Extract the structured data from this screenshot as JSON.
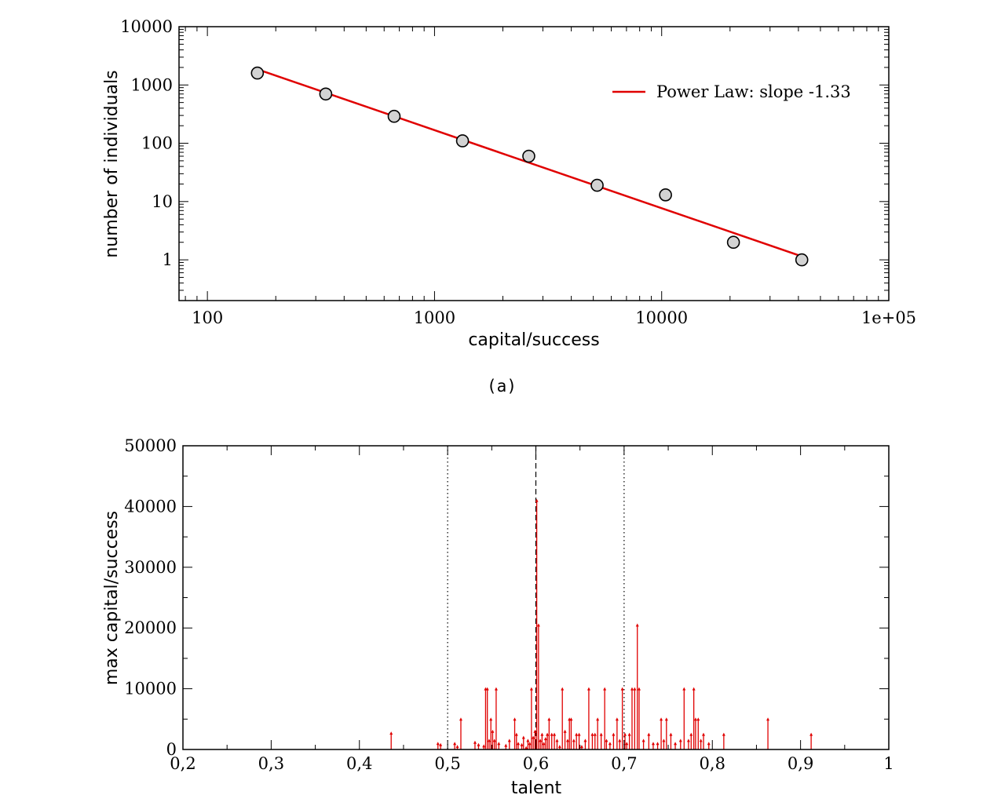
{
  "chart_data": [
    {
      "type": "scatter",
      "xlabel": "capital/success",
      "ylabel": "number of individuals",
      "x_scale": "log",
      "y_scale": "log",
      "xlim": [
        75,
        100000
      ],
      "ylim": [
        0.2,
        10000
      ],
      "x_ticks": [
        {
          "value": 100,
          "label": "100"
        },
        {
          "value": 1000,
          "label": "1000"
        },
        {
          "value": 10000,
          "label": "10000"
        },
        {
          "value": 100000,
          "label": "1e+05"
        }
      ],
      "y_ticks": [
        {
          "value": 1,
          "label": "1"
        },
        {
          "value": 10,
          "label": "10"
        },
        {
          "value": 100,
          "label": "100"
        },
        {
          "value": 1000,
          "label": "1000"
        },
        {
          "value": 10000,
          "label": "10000"
        }
      ],
      "points": [
        {
          "x": 166,
          "y": 1600
        },
        {
          "x": 332,
          "y": 700
        },
        {
          "x": 664,
          "y": 290
        },
        {
          "x": 1328,
          "y": 110
        },
        {
          "x": 2600,
          "y": 60
        },
        {
          "x": 5200,
          "y": 19
        },
        {
          "x": 10400,
          "y": 13
        },
        {
          "x": 20700,
          "y": 2
        },
        {
          "x": 41400,
          "y": 1
        }
      ],
      "fit_line": {
        "x": [
          170,
          40000
        ],
        "y": [
          1800,
          1.2
        ],
        "color": "#e00000"
      },
      "legend": {
        "label": "Power Law: slope -1.33",
        "position": "top-right"
      },
      "caption": "(a)"
    },
    {
      "type": "bar",
      "style": "impulse",
      "xlabel": "talent",
      "ylabel": "max capital/success",
      "xlim": [
        0.2,
        1.0
      ],
      "ylim": [
        0,
        50000
      ],
      "x_ticks": [
        {
          "value": 0.2,
          "label": "0,2"
        },
        {
          "value": 0.3,
          "label": "0,3"
        },
        {
          "value": 0.4,
          "label": "0,4"
        },
        {
          "value": 0.5,
          "label": "0,5"
        },
        {
          "value": 0.6,
          "label": "0,6"
        },
        {
          "value": 0.7,
          "label": "0,7"
        },
        {
          "value": 0.8,
          "label": "0,8"
        },
        {
          "value": 0.9,
          "label": "0,9"
        },
        {
          "value": 1.0,
          "label": "1"
        }
      ],
      "y_ticks": [
        {
          "value": 0,
          "label": "0"
        },
        {
          "value": 10000,
          "label": "10000"
        },
        {
          "value": 20000,
          "label": "20000"
        },
        {
          "value": 30000,
          "label": "30000"
        },
        {
          "value": 40000,
          "label": "40000"
        },
        {
          "value": 50000,
          "label": "50000"
        }
      ],
      "reference_lines": [
        {
          "x": 0.5,
          "style": "dotted"
        },
        {
          "x": 0.6,
          "style": "dashed"
        },
        {
          "x": 0.7,
          "style": "dotted"
        }
      ],
      "series_color": "#e00000",
      "x": [
        0.436,
        0.489,
        0.492,
        0.508,
        0.511,
        0.515,
        0.531,
        0.535,
        0.541,
        0.543,
        0.545,
        0.547,
        0.549,
        0.551,
        0.553,
        0.555,
        0.558,
        0.566,
        0.57,
        0.576,
        0.578,
        0.58,
        0.584,
        0.586,
        0.589,
        0.591,
        0.593,
        0.595,
        0.597,
        0.599,
        0.601,
        0.603,
        0.605,
        0.607,
        0.609,
        0.611,
        0.613,
        0.615,
        0.618,
        0.621,
        0.624,
        0.627,
        0.63,
        0.633,
        0.636,
        0.638,
        0.64,
        0.643,
        0.646,
        0.649,
        0.652,
        0.656,
        0.66,
        0.664,
        0.667,
        0.67,
        0.674,
        0.678,
        0.68,
        0.684,
        0.688,
        0.692,
        0.695,
        0.698,
        0.701,
        0.703,
        0.706,
        0.709,
        0.712,
        0.715,
        0.717,
        0.722,
        0.728,
        0.733,
        0.738,
        0.742,
        0.745,
        0.748,
        0.753,
        0.758,
        0.764,
        0.768,
        0.773,
        0.776,
        0.779,
        0.781,
        0.784,
        0.787,
        0.79,
        0.796,
        0.813,
        0.863,
        0.912
      ],
      "values": [
        2700,
        1000,
        800,
        1000,
        500,
        5000,
        1200,
        800,
        600,
        10000,
        10000,
        1500,
        5000,
        3000,
        1500,
        10000,
        1000,
        700,
        1500,
        5000,
        2500,
        1000,
        800,
        2000,
        300,
        1500,
        1000,
        10000,
        2000,
        3000,
        41000,
        20500,
        1500,
        2500,
        1000,
        1800,
        2500,
        5000,
        2500,
        2500,
        1500,
        500,
        10000,
        3000,
        1500,
        5000,
        5000,
        1500,
        2500,
        2500,
        500,
        1500,
        10000,
        2500,
        2500,
        5000,
        2500,
        10000,
        1500,
        1000,
        2500,
        5000,
        1500,
        10000,
        2500,
        1000,
        2500,
        10000,
        10000,
        20500,
        10000,
        1500,
        2500,
        1000,
        1000,
        5000,
        1500,
        5000,
        2500,
        1000,
        1500,
        10000,
        1500,
        2500,
        10000,
        5000,
        5000,
        1500,
        2500,
        1000,
        2500,
        5000,
        2500
      ],
      "caption": ""
    }
  ]
}
